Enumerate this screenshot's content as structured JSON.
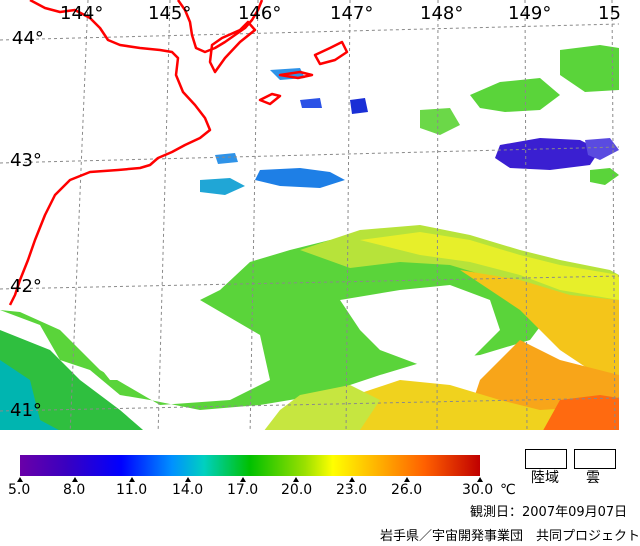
{
  "map": {
    "lon_labels": [
      "144°",
      "145°",
      "146°",
      "147°",
      "148°",
      "149°",
      "15"
    ],
    "lat_labels": [
      "44°",
      "43°",
      "42°",
      "41°"
    ]
  },
  "legend": {
    "ticks": [
      "5.0",
      "8.0",
      "11.0",
      "14.0",
      "17.0",
      "20.0",
      "23.0",
      "26.0",
      "30.0"
    ],
    "unit": "℃",
    "land_label": "陸域",
    "cloud_label": "雲",
    "colors": [
      "#6a00a8",
      "#0000ff",
      "#0090ff",
      "#00c000",
      "#9be000",
      "#ffff00",
      "#ffb000",
      "#ff6000",
      "#c00000"
    ]
  },
  "footer": {
    "date": "観測日：2007年09月07日",
    "credit": "岩手県／宇宙開発事業団　共同プロジェクト"
  }
}
